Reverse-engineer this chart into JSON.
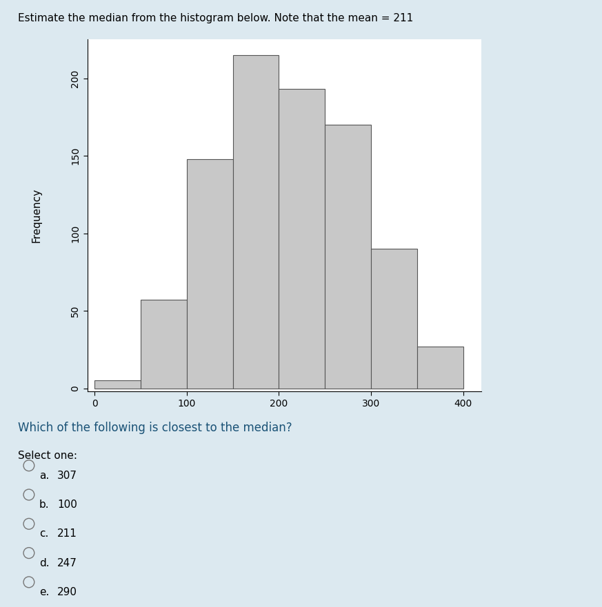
{
  "title": "Estimate the median from the histogram below. Note that the mean = 211",
  "title_color": "#000000",
  "title_fontsize": 11,
  "xlabel": "",
  "ylabel": "Frequency",
  "bar_edges": [
    0,
    50,
    100,
    150,
    200,
    250,
    300,
    350,
    400
  ],
  "bar_heights": [
    5,
    57,
    148,
    215,
    193,
    170,
    90,
    27
  ],
  "bar_color": "#c8c8c8",
  "bar_edgecolor": "#555555",
  "bar_linewidth": 0.8,
  "xlim": [
    -8,
    420
  ],
  "ylim": [
    -2,
    225
  ],
  "yticks": [
    0,
    50,
    100,
    150,
    200
  ],
  "xticks": [
    0,
    100,
    200,
    300,
    400
  ],
  "background_color": "#dce9f0",
  "plot_background": "#ffffff",
  "question_text": "Which of the following is closest to the median?",
  "question_color": "#1a5276",
  "question_fontsize": 12,
  "select_text": "Select one:",
  "select_fontsize": 11,
  "options": [
    {
      "label": "a.",
      "value": "307"
    },
    {
      "label": "b.",
      "value": "100"
    },
    {
      "label": "c.",
      "value": "211"
    },
    {
      "label": "d.",
      "value": "247"
    },
    {
      "label": "e.",
      "value": "290"
    }
  ],
  "option_color": "#000000",
  "option_fontsize": 11
}
